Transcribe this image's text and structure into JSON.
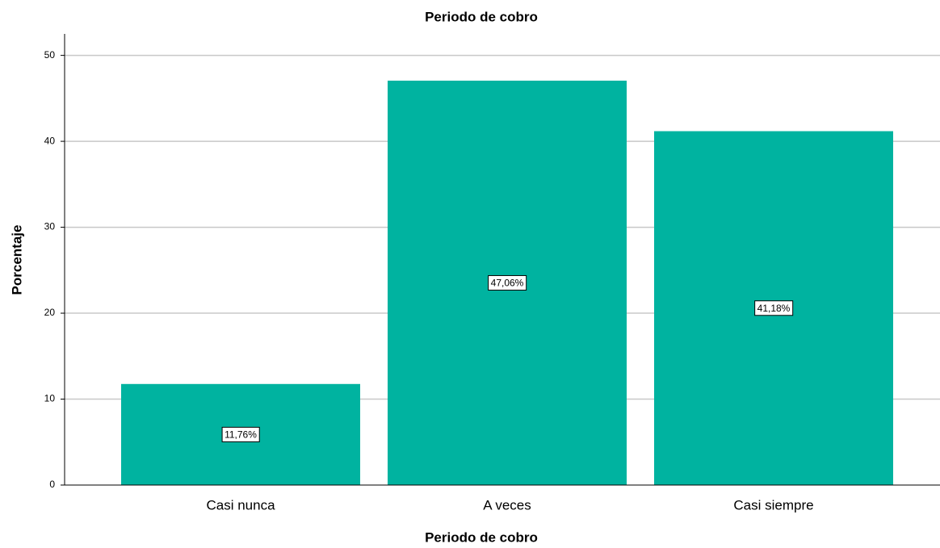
{
  "chart_data": {
    "type": "bar",
    "title": "Periodo de cobro",
    "x_label": "Periodo de cobro",
    "y_label": "Porcentaje",
    "categories": [
      "Casi nunca",
      "A veces",
      "Casi siempre"
    ],
    "values": [
      11.76,
      47.06,
      41.18
    ],
    "value_labels": [
      "11,76%",
      "47,06%",
      "41,18%"
    ],
    "color": "#00b3a0",
    "ylim": [
      0,
      52.5
    ],
    "yticks": [
      0,
      10,
      20,
      30,
      40,
      50
    ],
    "grid": true
  }
}
